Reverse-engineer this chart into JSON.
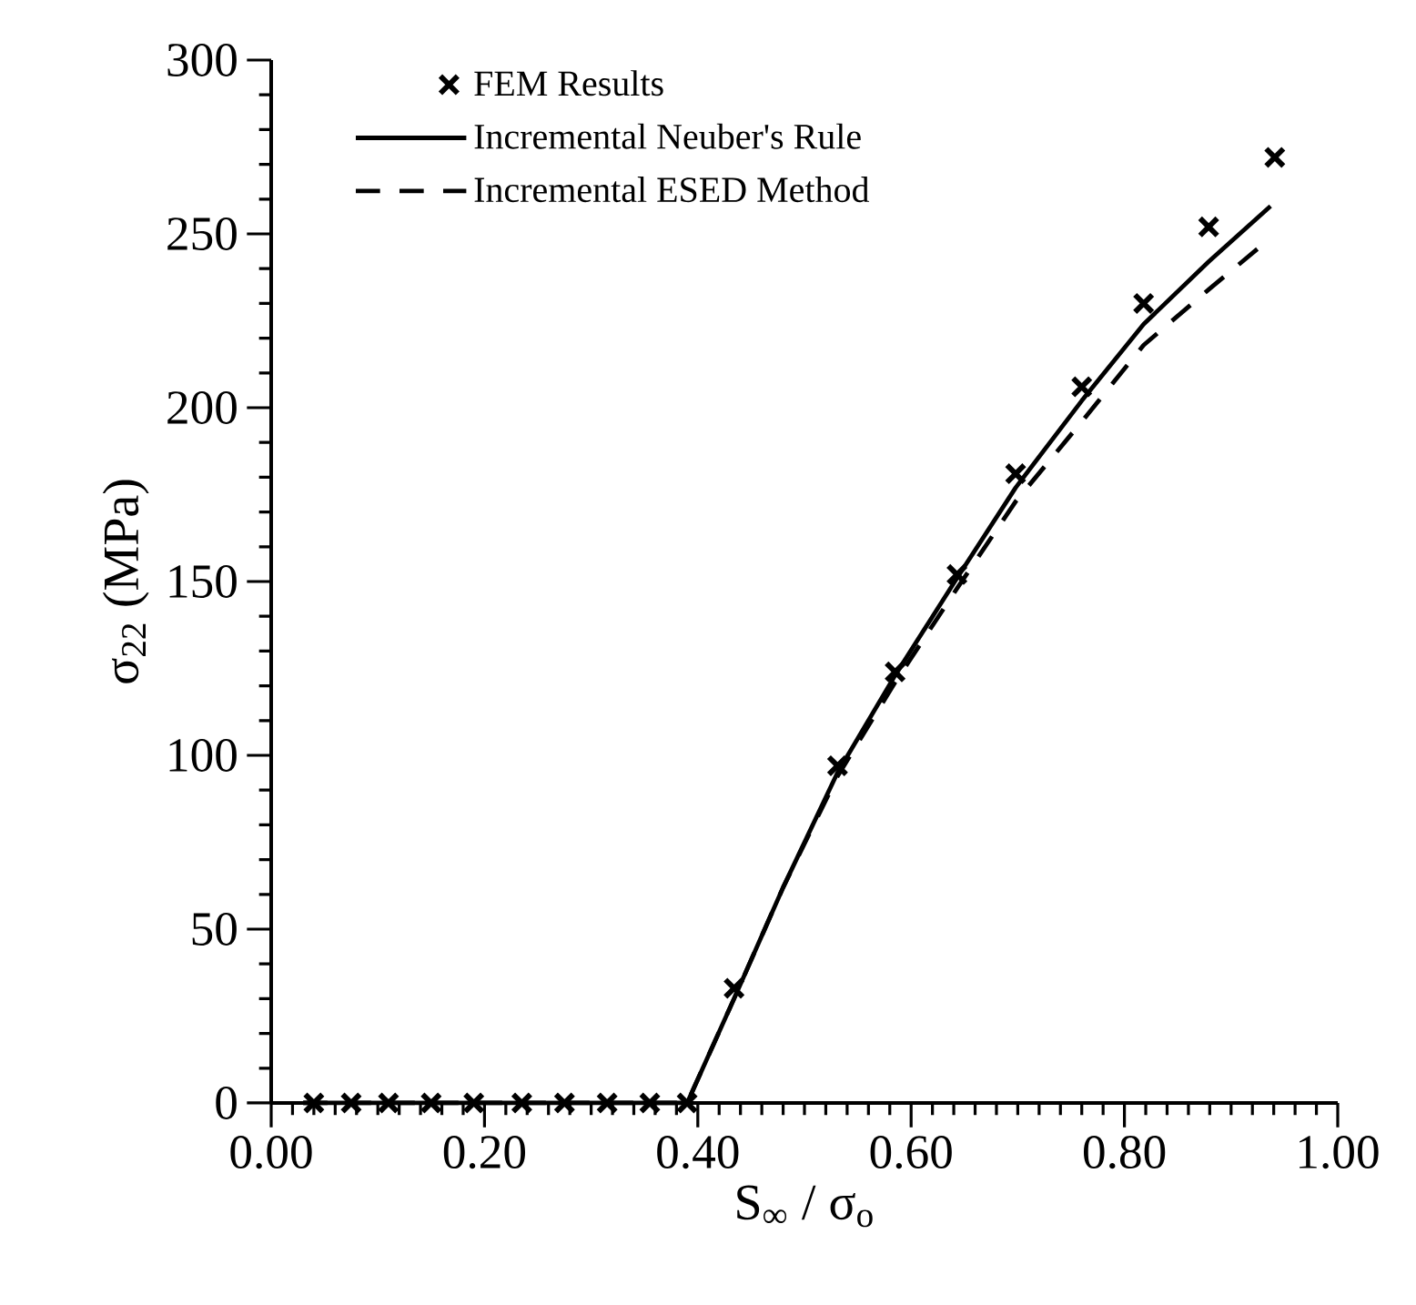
{
  "chart_data": {
    "type": "line",
    "xlabel": "S$_{∞}$ / σ$_{o}$",
    "ylabel": "σ$_{22}$ (MPa)",
    "xlim": [
      0,
      1
    ],
    "ylim": [
      0,
      300
    ],
    "xticks": [
      {
        "value": 0,
        "label": "0.00"
      },
      {
        "value": 0.2,
        "label": "0.20"
      },
      {
        "value": 0.4,
        "label": "0.40"
      },
      {
        "value": 0.6,
        "label": "0.60"
      },
      {
        "value": 0.8,
        "label": "0.80"
      },
      {
        "value": 1,
        "label": "1.00"
      }
    ],
    "yticks": [
      0,
      50,
      100,
      150,
      200,
      250,
      300
    ],
    "grid": false,
    "legend": "top left",
    "series": [
      {
        "name": "FEM Results",
        "type": "scatter",
        "marker": "cross",
        "color": "#000000",
        "x": [
          0.04,
          0.075,
          0.11,
          0.15,
          0.19,
          0.235,
          0.275,
          0.315,
          0.355,
          0.39,
          0.434,
          0.531,
          0.585,
          0.643,
          0.698,
          0.76,
          0.818,
          0.879,
          0.941
        ],
        "values": [
          0,
          0,
          0,
          0,
          0,
          0,
          0,
          0,
          0,
          0,
          33,
          97,
          124,
          152,
          181,
          206,
          230,
          252,
          272
        ]
      },
      {
        "name": "Incremental Neuber's Rule",
        "line_style": "solid",
        "color": "#000000",
        "x": [
          0.03,
          0.39,
          0.434,
          0.48,
          0.531,
          0.585,
          0.643,
          0.698,
          0.76,
          0.818,
          0.879,
          0.937
        ],
        "values": [
          0,
          0,
          30,
          62,
          95,
          123,
          151,
          177,
          202,
          224,
          242,
          258
        ]
      },
      {
        "name": "Incremental ESED Method",
        "line_style": "dashed",
        "color": "#000000",
        "x": [
          0.03,
          0.39,
          0.434,
          0.48,
          0.531,
          0.585,
          0.643,
          0.698,
          0.76,
          0.818,
          0.879,
          0.93
        ],
        "values": [
          0,
          0,
          30,
          62,
          94,
          121,
          148,
          173,
          196,
          218,
          234,
          247
        ]
      }
    ]
  }
}
